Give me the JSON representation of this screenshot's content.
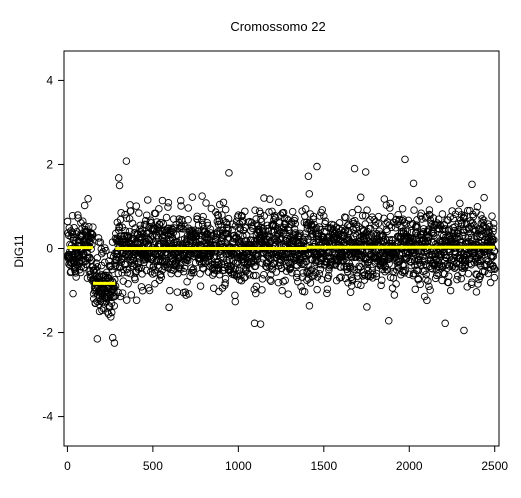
{
  "chart_data": {
    "type": "scatter",
    "title": "Cromossomo 22",
    "xlabel": "",
    "ylabel": "DiG11",
    "xlim": [
      -20,
      2525
    ],
    "ylim": [
      -4.7,
      4.7
    ],
    "x_ticks": [
      0,
      500,
      1000,
      1500,
      2000,
      2500
    ],
    "y_ticks": [
      -4,
      -2,
      0,
      2,
      4
    ],
    "grid": false,
    "legend": "none",
    "n_points": 2500,
    "marker": "open-circle",
    "point_color": "#000000",
    "segment_color": "#ffff00",
    "segments": [
      {
        "x_start": 0,
        "x_end": 150,
        "y": 0.02
      },
      {
        "x_start": 150,
        "x_end": 280,
        "y": -0.83
      },
      {
        "x_start": 280,
        "x_end": 1400,
        "y": 0.0
      },
      {
        "x_start": 1400,
        "x_end": 2500,
        "y": 0.03
      }
    ],
    "noise_sd": 0.42,
    "notable_points": [
      {
        "x": 345,
        "y": 2.08
      },
      {
        "x": 300,
        "y": 1.68
      },
      {
        "x": 305,
        "y": 1.5
      },
      {
        "x": 945,
        "y": 1.8
      },
      {
        "x": 1680,
        "y": 1.9
      },
      {
        "x": 1745,
        "y": 1.82
      },
      {
        "x": 1975,
        "y": 2.12
      },
      {
        "x": 2025,
        "y": 1.55
      },
      {
        "x": 1410,
        "y": 1.72
      },
      {
        "x": 1415,
        "y": 1.3
      },
      {
        "x": 1460,
        "y": 1.95
      },
      {
        "x": 1095,
        "y": -1.78
      },
      {
        "x": 1130,
        "y": -1.8
      },
      {
        "x": 1880,
        "y": -1.72
      },
      {
        "x": 2210,
        "y": -1.78
      },
      {
        "x": 2320,
        "y": -1.95
      },
      {
        "x": 175,
        "y": -2.15
      },
      {
        "x": 265,
        "y": -2.12
      },
      {
        "x": 275,
        "y": -2.25
      },
      {
        "x": 595,
        "y": -1.4
      }
    ]
  }
}
